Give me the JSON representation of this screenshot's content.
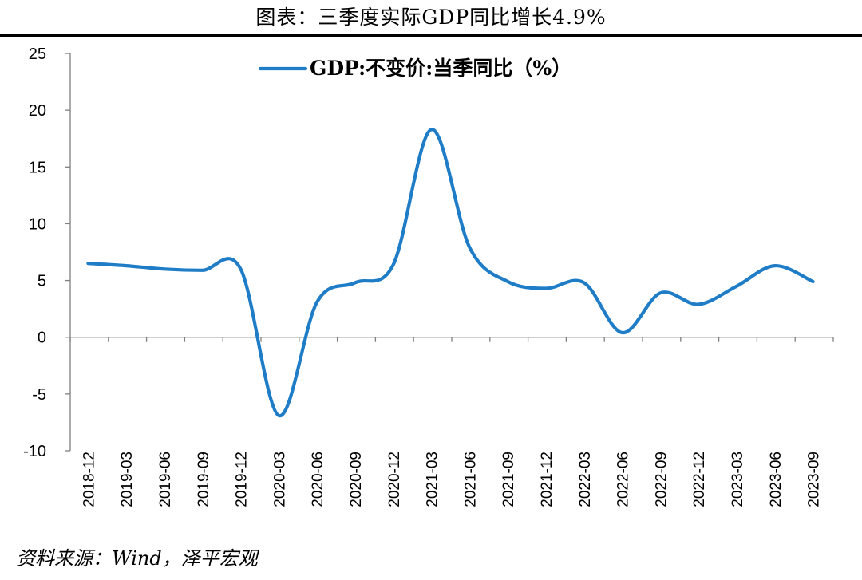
{
  "header": {
    "title": "图表：三季度实际GDP同比增长4.9%"
  },
  "footer": {
    "source": "资料来源：Wind，泽平宏观"
  },
  "colors": {
    "series": "#1f7cc6",
    "axis": "#7f7f7f",
    "text": "#000000"
  },
  "chart_data": {
    "type": "line",
    "title": "",
    "xlabel": "",
    "ylabel": "",
    "ylim": [
      -10,
      25
    ],
    "yticks": [
      -10,
      -5,
      0,
      5,
      10,
      15,
      20,
      25
    ],
    "grid": false,
    "legend_position": "top-center",
    "categories": [
      "2018-12",
      "2019-03",
      "2019-06",
      "2019-09",
      "2019-12",
      "2020-03",
      "2020-06",
      "2020-09",
      "2020-12",
      "2021-03",
      "2021-06",
      "2021-09",
      "2021-12",
      "2022-03",
      "2022-06",
      "2022-09",
      "2022-12",
      "2023-03",
      "2023-06",
      "2023-09"
    ],
    "series": [
      {
        "name": "GDP:不变价:当季同比（%）",
        "values": [
          6.5,
          6.3,
          6.0,
          5.9,
          6.0,
          -6.9,
          3.1,
          4.8,
          6.4,
          18.3,
          7.9,
          4.9,
          4.3,
          4.8,
          0.4,
          3.9,
          2.9,
          4.5,
          6.3,
          4.9
        ]
      }
    ]
  }
}
